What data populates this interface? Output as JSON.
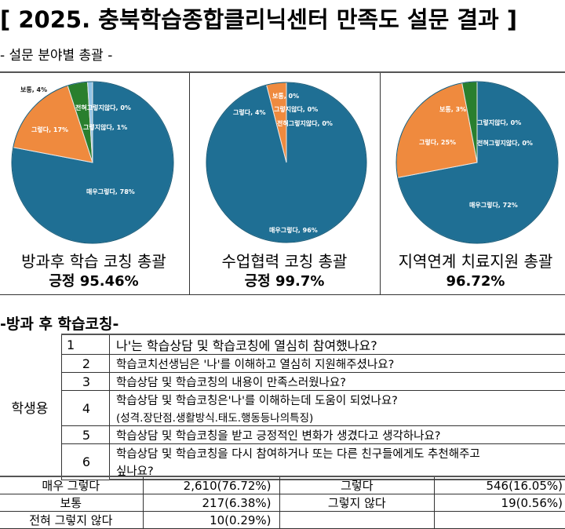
{
  "header": {
    "title": "[ 2025. 충북학습종합클리닉센터 만족도 설문 결과 ]",
    "subtitle": "- 설문 분야별 총괄 -"
  },
  "colors": {
    "very_yes": "#1f6f94",
    "yes": "#ef8a3e",
    "neutral": "#2a7f2e",
    "no": "#8fc3e6",
    "not_at_all": "#c8def0"
  },
  "chart_data": [
    {
      "type": "pie",
      "title": "방과후 학습 코칭 총괄",
      "summary": "긍정 95.46%",
      "categories": [
        "매우그렇다",
        "그렇다",
        "보통",
        "그렇지않다",
        "전혀그렇지않다"
      ],
      "values": [
        78,
        17,
        4,
        1,
        0
      ],
      "labels": [
        "매우그렇다, 78%",
        "그렇다, 17%",
        "보통, 4%",
        "그렇지않다, 1%",
        "전혀그렇지않다, 0%"
      ]
    },
    {
      "type": "pie",
      "title": "수업협력 코칭 총괄",
      "summary": "긍정 99.7%",
      "categories": [
        "매우그렇다",
        "그렇다",
        "보통",
        "그렇지않다",
        "전혀그렇지않다"
      ],
      "values": [
        96,
        4,
        0,
        0,
        0
      ],
      "labels": [
        "매우그렇다, 96%",
        "그렇다, 4%",
        "보통, 0%",
        "그렇지않다, 0%",
        "전혀그렇지않다, 0%"
      ]
    },
    {
      "type": "pie",
      "title": "지역연계 치료지원 총괄",
      "summary": "96.72%",
      "categories": [
        "매우그렇다",
        "그렇다",
        "보통",
        "그렇지않다",
        "전혀그렇지않다"
      ],
      "values": [
        72,
        25,
        3,
        0,
        0
      ],
      "labels": [
        "매우그렇다, 72%",
        "그렇다, 25%",
        "보통, 3%",
        "그렇지않다, 0%",
        "전혀그렇지않다, 0%"
      ]
    }
  ],
  "section": {
    "title": "-방과 후 학습코칭-",
    "group_label": "학생용",
    "questions": [
      {
        "no": "1",
        "text": "나'는 학습상담 및 학습코칭에 열심히 참여했나요?"
      },
      {
        "no": "2",
        "text": "학습코치선생님은 '나'를 이해하고 열심히 지원해주셨나요?"
      },
      {
        "no": "3",
        "text": "학습상담 및 학습코칭의 내용이 만족스러웠나요?"
      },
      {
        "no": "4",
        "text": "학습상담 및 학습코칭은'나'를 이해하는데 도움이 되었나요?",
        "text2": "(성격.장단점.생활방식.태도.행동등나의특징)"
      },
      {
        "no": "5",
        "text": "학습상담 및 학습코칭을 받고 긍정적인 변화가 생겼다고 생각하나요?"
      },
      {
        "no": "6",
        "text": "학습상담 및 학습코칭을 다시 참여하거나 또는 다른 친구들에게도 추천해주고",
        "text2": "싶나요?"
      }
    ]
  },
  "summary_table": {
    "rows": [
      [
        {
          "label": "매우 그렇다",
          "value": "2,610(76.72%)"
        },
        {
          "label": "그렇다",
          "value": "546(16.05%)"
        }
      ],
      [
        {
          "label": "보통",
          "value": "217(6.38%)"
        },
        {
          "label": "그렇지 않다",
          "value": "19(0.56%)"
        }
      ],
      [
        {
          "label": "전혀 그렇지 않다",
          "value": "10(0.29%)"
        },
        {
          "label": "",
          "value": ""
        }
      ]
    ]
  }
}
